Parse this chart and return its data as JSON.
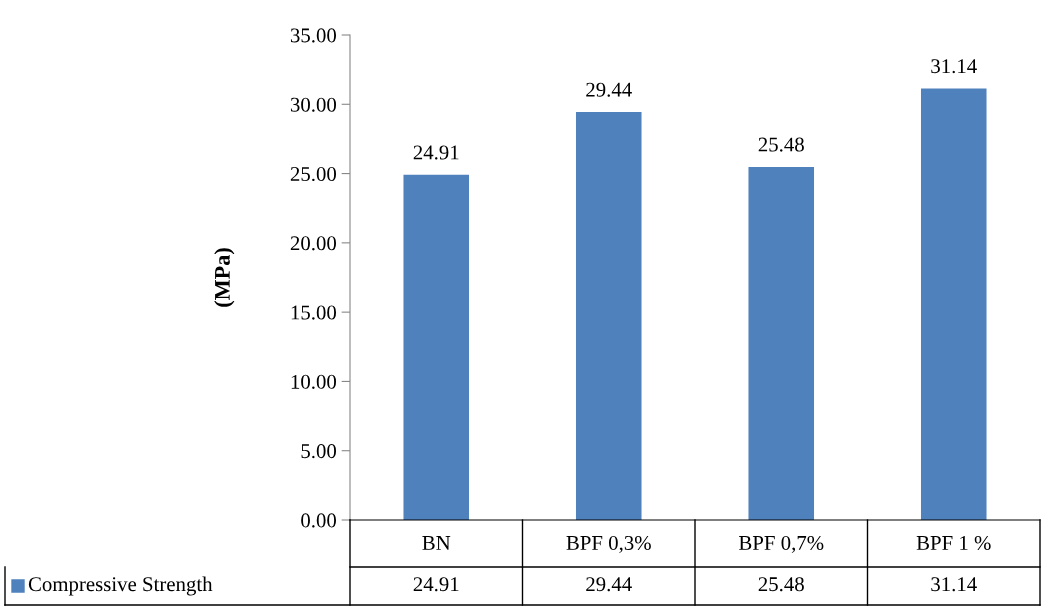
{
  "chart_data": {
    "type": "bar",
    "ylabel": "(MPa)",
    "categories": [
      "BN",
      "BPF 0,3%",
      "BPF 0,7%",
      "BPF 1 %"
    ],
    "series": [
      {
        "name": "Compressive Strength",
        "color": "#4f81bd",
        "values": [
          24.91,
          29.44,
          25.48,
          31.14
        ],
        "value_labels": [
          "24.91",
          "29.44",
          "25.48",
          "31.14"
        ]
      }
    ],
    "ylim": [
      0,
      35
    ],
    "yticks": [
      {
        "value": 0,
        "label": "0.00"
      },
      {
        "value": 5,
        "label": "5.00"
      },
      {
        "value": 10,
        "label": "10.00"
      },
      {
        "value": 15,
        "label": "15.00"
      },
      {
        "value": 20,
        "label": "20.00"
      },
      {
        "value": 25,
        "label": "25.00"
      },
      {
        "value": 30,
        "label": "30.00"
      },
      {
        "value": 35,
        "label": "35.00"
      }
    ],
    "annotations": [
      "24.91",
      "29.44",
      "25.48",
      "31.14"
    ],
    "grid": false,
    "legend": "bottom"
  }
}
